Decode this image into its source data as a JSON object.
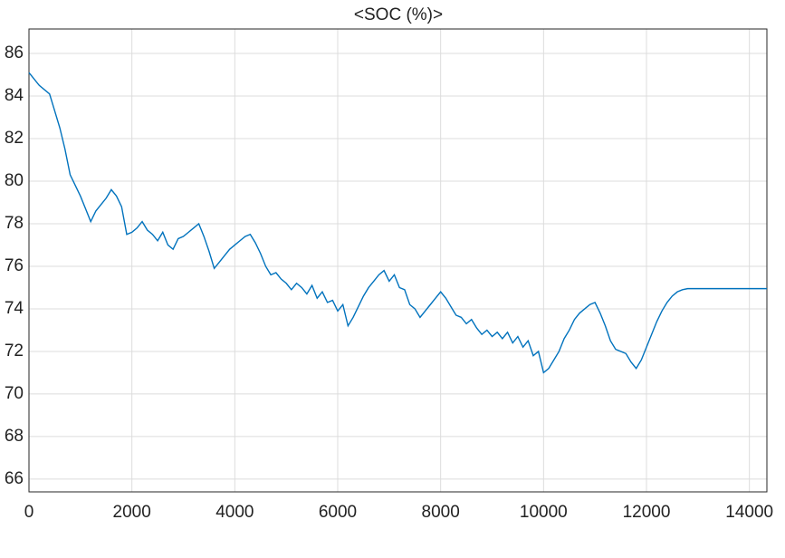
{
  "chart_data": {
    "type": "line",
    "title": "<SOC (%)>",
    "x": [
      0,
      200,
      400,
      500,
      600,
      700,
      800,
      900,
      1000,
      1100,
      1200,
      1300,
      1400,
      1500,
      1600,
      1700,
      1800,
      1900,
      2000,
      2100,
      2200,
      2300,
      2400,
      2500,
      2600,
      2700,
      2800,
      2900,
      3000,
      3100,
      3200,
      3300,
      3400,
      3500,
      3600,
      3700,
      3800,
      3900,
      4000,
      4100,
      4200,
      4300,
      4400,
      4500,
      4600,
      4700,
      4800,
      4900,
      5000,
      5100,
      5200,
      5300,
      5400,
      5500,
      5600,
      5700,
      5800,
      5900,
      6000,
      6100,
      6200,
      6300,
      6400,
      6500,
      6600,
      6700,
      6800,
      6900,
      7000,
      7100,
      7200,
      7300,
      7400,
      7500,
      7600,
      7700,
      7800,
      7900,
      8000,
      8100,
      8200,
      8300,
      8400,
      8500,
      8600,
      8700,
      8800,
      8900,
      9000,
      9100,
      9200,
      9300,
      9400,
      9500,
      9600,
      9700,
      9800,
      9900,
      10000,
      10100,
      10200,
      10300,
      10400,
      10500,
      10600,
      10700,
      10800,
      10900,
      11000,
      11100,
      11200,
      11300,
      11400,
      11500,
      11600,
      11700,
      11800,
      11900,
      12000,
      12100,
      12200,
      12300,
      12400,
      12500,
      12600,
      12700,
      12800,
      12900,
      14340
    ],
    "series": [
      {
        "name": "SOC",
        "color": "#0072bd",
        "values": [
          85.1,
          84.5,
          84.1,
          83.3,
          82.5,
          81.5,
          80.3,
          79.8,
          79.3,
          78.7,
          78.1,
          78.6,
          78.9,
          79.2,
          79.6,
          79.3,
          78.8,
          77.5,
          77.6,
          77.8,
          78.1,
          77.7,
          77.5,
          77.2,
          77.6,
          77.0,
          76.8,
          77.3,
          77.4,
          77.6,
          77.8,
          78.0,
          77.4,
          76.7,
          75.9,
          76.2,
          76.5,
          76.8,
          77.0,
          77.2,
          77.4,
          77.5,
          77.1,
          76.6,
          76.0,
          75.6,
          75.7,
          75.4,
          75.2,
          74.9,
          75.2,
          75.0,
          74.7,
          75.1,
          74.5,
          74.8,
          74.3,
          74.4,
          73.9,
          74.2,
          73.2,
          73.6,
          74.1,
          74.6,
          75.0,
          75.3,
          75.6,
          75.8,
          75.3,
          75.6,
          75.0,
          74.9,
          74.2,
          74.0,
          73.6,
          73.9,
          74.2,
          74.5,
          74.8,
          74.5,
          74.1,
          73.7,
          73.6,
          73.3,
          73.5,
          73.1,
          72.8,
          73.0,
          72.7,
          72.9,
          72.6,
          72.9,
          72.4,
          72.7,
          72.2,
          72.5,
          71.8,
          72.0,
          71.0,
          71.2,
          71.6,
          72.0,
          72.6,
          73.0,
          73.5,
          73.8,
          74.0,
          74.2,
          74.3,
          73.8,
          73.2,
          72.5,
          72.1,
          72.0,
          71.9,
          71.5,
          71.2,
          71.6,
          72.2,
          72.8,
          73.4,
          73.9,
          74.3,
          74.6,
          74.8,
          74.9,
          74.95,
          74.95,
          74.95
        ]
      }
    ],
    "xlim": [
      0,
      14340
    ],
    "xticks": [
      0,
      2000,
      4000,
      6000,
      8000,
      10000,
      12000,
      14000
    ],
    "ylim": [
      65.4,
      87.15
    ],
    "yticks": [
      66,
      68,
      70,
      72,
      74,
      76,
      78,
      80,
      82,
      84,
      86
    ],
    "grid": true
  }
}
